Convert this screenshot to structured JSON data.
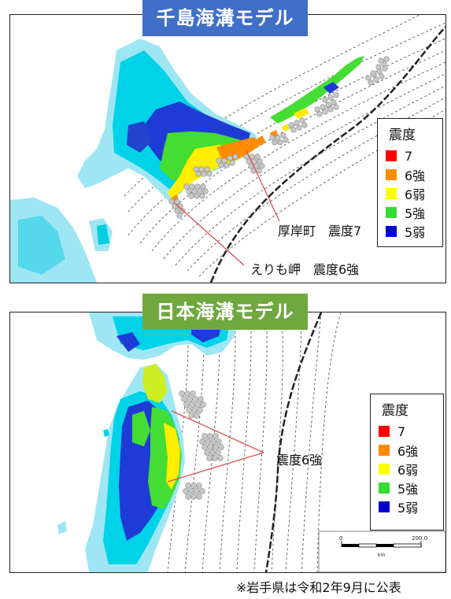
{
  "panel_top": {
    "title": "千島海溝モデル",
    "legend": {
      "title": "震度",
      "items": [
        {
          "label": "7",
          "color": "#ff0000"
        },
        {
          "label": "6強",
          "color": "#ff8c00"
        },
        {
          "label": "6弱",
          "color": "#ffff00"
        },
        {
          "label": "5強",
          "color": "#33dd33"
        },
        {
          "label": "5弱",
          "color": "#0000cc"
        }
      ]
    },
    "annotations": {
      "atsukeshi": "厚岸町　震度7",
      "erimo": "えりも岬　震度6強"
    }
  },
  "panel_bottom": {
    "title": "日本海溝モデル",
    "legend": {
      "title": "震度",
      "items": [
        {
          "label": "7",
          "color": "#ff0000"
        },
        {
          "label": "6強",
          "color": "#ff8c00"
        },
        {
          "label": "6弱",
          "color": "#ffff00"
        },
        {
          "label": "5強",
          "color": "#33dd33"
        },
        {
          "label": "5弱",
          "color": "#0000cc"
        }
      ]
    },
    "annotation": "震度6強",
    "scale_bar": {
      "start": "0",
      "end": "200.0",
      "unit": "km"
    }
  },
  "footnote": "※岩手県は令和2年9月に公表",
  "colors": {
    "land_base": "#9fe6f5",
    "land_cyan": "#00d2e8",
    "sea": "#ffffff",
    "trench_line": "#222222",
    "leader_line": "#e05050",
    "fault_dot": "#c8c8c8",
    "title_top_bg": "#3f6fc6",
    "title_bottom_bg": "#70a83f"
  }
}
